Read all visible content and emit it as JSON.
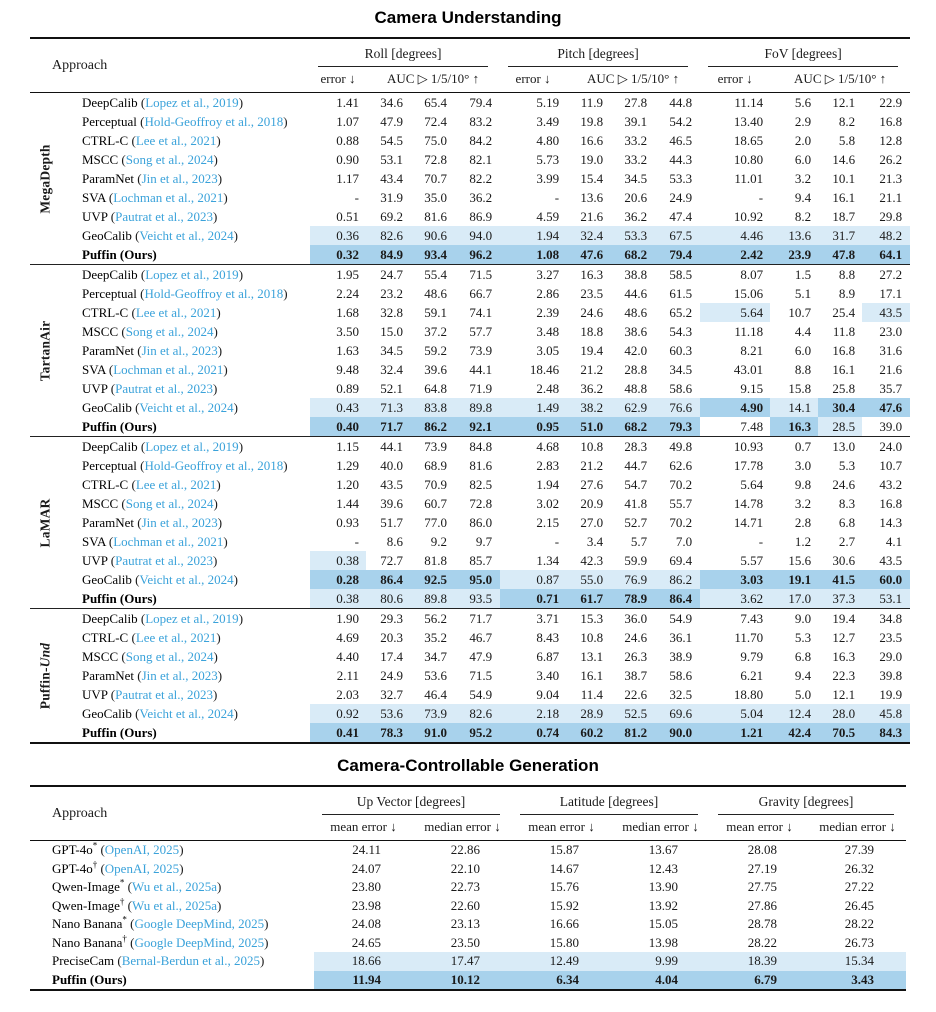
{
  "colors": {
    "citation": "#3AA2DA",
    "highlight_light": "#D9EBF7",
    "highlight_dark": "#A8D2EC"
  },
  "understanding": {
    "title": "Camera Understanding",
    "approach_label": "Approach",
    "groups": [
      {
        "label": "Roll [degrees]",
        "error": "error ↓",
        "auc": "AUC ▷ 1/5/10° ↑"
      },
      {
        "label": "Pitch [degrees]",
        "error": "error ↓",
        "auc": "AUC ▷ 1/5/10° ↑"
      },
      {
        "label": "FoV [degrees]",
        "error": "error ↓",
        "auc": "AUC ▷ 1/5/10° ↑"
      }
    ],
    "sections": [
      {
        "label": "MegaDepth",
        "label_italic": "",
        "rows": [
          {
            "method": "DeepCalib",
            "cite": "Lopez et al., 2019",
            "values": [
              "1.41",
              "34.6",
              "65.4",
              "79.4",
              "5.19",
              "11.9",
              "27.8",
              "44.8",
              "11.14",
              "5.6",
              "12.1",
              "22.9"
            ]
          },
          {
            "method": "Perceptual",
            "cite": "Hold-Geoffroy et al., 2018",
            "values": [
              "1.07",
              "47.9",
              "72.4",
              "83.2",
              "3.49",
              "19.8",
              "39.1",
              "54.2",
              "13.40",
              "2.9",
              "8.2",
              "16.8"
            ]
          },
          {
            "method": "CTRL-C",
            "cite": "Lee et al., 2021",
            "values": [
              "0.88",
              "54.5",
              "75.0",
              "84.2",
              "4.80",
              "16.6",
              "33.2",
              "46.5",
              "18.65",
              "2.0",
              "5.8",
              "12.8"
            ]
          },
          {
            "method": "MSCC",
            "cite": "Song et al., 2024",
            "values": [
              "0.90",
              "53.1",
              "72.8",
              "82.1",
              "5.73",
              "19.0",
              "33.2",
              "44.3",
              "10.80",
              "6.0",
              "14.6",
              "26.2"
            ]
          },
          {
            "method": "ParamNet",
            "cite": "Jin et al., 2023",
            "values": [
              "1.17",
              "43.4",
              "70.7",
              "82.2",
              "3.99",
              "15.4",
              "34.5",
              "53.3",
              "11.01",
              "3.2",
              "10.1",
              "21.3"
            ]
          },
          {
            "method": "SVA",
            "cite": "Lochman et al., 2021",
            "values": [
              "-",
              "31.9",
              "35.0",
              "36.2",
              "-",
              "13.6",
              "20.6",
              "24.9",
              "-",
              "9.4",
              "16.1",
              "21.1"
            ]
          },
          {
            "method": "UVP",
            "cite": "Pautrat et al., 2023",
            "values": [
              "0.51",
              "69.2",
              "81.6",
              "86.9",
              "4.59",
              "21.6",
              "36.2",
              "47.4",
              "10.92",
              "8.2",
              "18.7",
              "29.8"
            ]
          },
          {
            "method": "GeoCalib",
            "cite": "Veicht et al., 2024",
            "values": [
              "0.36",
              "82.6",
              "90.6",
              "94.0",
              "1.94",
              "32.4",
              "53.3",
              "67.5",
              "4.46",
              "13.6",
              "31.7",
              "48.2"
            ],
            "hl": [
              1,
              1,
              1,
              1,
              1,
              1,
              1,
              1,
              1,
              1,
              1,
              1
            ]
          },
          {
            "method": "Puffin (Ours)",
            "bold": true,
            "values": [
              "0.32",
              "84.9",
              "93.4",
              "96.2",
              "1.08",
              "47.6",
              "68.2",
              "79.4",
              "2.42",
              "23.9",
              "47.8",
              "64.1"
            ],
            "hl": [
              2,
              2,
              2,
              2,
              2,
              2,
              2,
              2,
              2,
              2,
              2,
              2
            ]
          }
        ]
      },
      {
        "label": "TartanAir",
        "label_italic": "",
        "rows": [
          {
            "method": "DeepCalib",
            "cite": "Lopez et al., 2019",
            "values": [
              "1.95",
              "24.7",
              "55.4",
              "71.5",
              "3.27",
              "16.3",
              "38.8",
              "58.5",
              "8.07",
              "1.5",
              "8.8",
              "27.2"
            ]
          },
          {
            "method": "Perceptual",
            "cite": "Hold-Geoffroy et al., 2018",
            "values": [
              "2.24",
              "23.2",
              "48.6",
              "66.7",
              "2.86",
              "23.5",
              "44.6",
              "61.5",
              "15.06",
              "5.1",
              "8.9",
              "17.1"
            ]
          },
          {
            "method": "CTRL-C",
            "cite": "Lee et al., 2021",
            "values": [
              "1.68",
              "32.8",
              "59.1",
              "74.1",
              "2.39",
              "24.6",
              "48.6",
              "65.2",
              "5.64",
              "10.7",
              "25.4",
              "43.5"
            ],
            "hl": [
              0,
              0,
              0,
              0,
              0,
              0,
              0,
              0,
              1,
              0,
              0,
              1
            ]
          },
          {
            "method": "MSCC",
            "cite": "Song et al., 2024",
            "values": [
              "3.50",
              "15.0",
              "37.2",
              "57.7",
              "3.48",
              "18.8",
              "38.6",
              "54.3",
              "11.18",
              "4.4",
              "11.8",
              "23.0"
            ]
          },
          {
            "method": "ParamNet",
            "cite": "Jin et al., 2023",
            "values": [
              "1.63",
              "34.5",
              "59.2",
              "73.9",
              "3.05",
              "19.4",
              "42.0",
              "60.3",
              "8.21",
              "6.0",
              "16.8",
              "31.6"
            ]
          },
          {
            "method": "SVA",
            "cite": "Lochman et al., 2021",
            "values": [
              "9.48",
              "32.4",
              "39.6",
              "44.1",
              "18.46",
              "21.2",
              "28.8",
              "34.5",
              "43.01",
              "8.8",
              "16.1",
              "21.6"
            ]
          },
          {
            "method": "UVP",
            "cite": "Pautrat et al., 2023",
            "values": [
              "0.89",
              "52.1",
              "64.8",
              "71.9",
              "2.48",
              "36.2",
              "48.8",
              "58.6",
              "9.15",
              "15.8",
              "25.8",
              "35.7"
            ]
          },
          {
            "method": "GeoCalib",
            "cite": "Veicht et al., 2024",
            "values": [
              "0.43",
              "71.3",
              "83.8",
              "89.8",
              "1.49",
              "38.2",
              "62.9",
              "76.6",
              "4.90",
              "14.1",
              "30.4",
              "47.6"
            ],
            "hl": [
              1,
              1,
              1,
              1,
              1,
              1,
              1,
              1,
              2,
              1,
              2,
              2
            ]
          },
          {
            "method": "Puffin (Ours)",
            "bold": true,
            "values": [
              "0.40",
              "71.7",
              "86.2",
              "92.1",
              "0.95",
              "51.0",
              "68.2",
              "79.3",
              "7.48",
              "16.3",
              "28.5",
              "39.0"
            ],
            "hl": [
              2,
              2,
              2,
              2,
              2,
              2,
              2,
              2,
              0,
              2,
              1,
              0
            ]
          }
        ]
      },
      {
        "label": "LaMAR",
        "label_italic": "",
        "rows": [
          {
            "method": "DeepCalib",
            "cite": "Lopez et al., 2019",
            "values": [
              "1.15",
              "44.1",
              "73.9",
              "84.8",
              "4.68",
              "10.8",
              "28.3",
              "49.8",
              "10.93",
              "0.7",
              "13.0",
              "24.0"
            ]
          },
          {
            "method": "Perceptual",
            "cite": "Hold-Geoffroy et al., 2018",
            "values": [
              "1.29",
              "40.0",
              "68.9",
              "81.6",
              "2.83",
              "21.2",
              "44.7",
              "62.6",
              "17.78",
              "3.0",
              "5.3",
              "10.7"
            ]
          },
          {
            "method": "CTRL-C",
            "cite": "Lee et al., 2021",
            "values": [
              "1.20",
              "43.5",
              "70.9",
              "82.5",
              "1.94",
              "27.6",
              "54.7",
              "70.2",
              "5.64",
              "9.8",
              "24.6",
              "43.2"
            ]
          },
          {
            "method": "MSCC",
            "cite": "Song et al., 2024",
            "values": [
              "1.44",
              "39.6",
              "60.7",
              "72.8",
              "3.02",
              "20.9",
              "41.8",
              "55.7",
              "14.78",
              "3.2",
              "8.3",
              "16.8"
            ]
          },
          {
            "method": "ParamNet",
            "cite": "Jin et al., 2023",
            "values": [
              "0.93",
              "51.7",
              "77.0",
              "86.0",
              "2.15",
              "27.0",
              "52.7",
              "70.2",
              "14.71",
              "2.8",
              "6.8",
              "14.3"
            ]
          },
          {
            "method": "SVA",
            "cite": "Lochman et al., 2021",
            "values": [
              "-",
              "8.6",
              "9.2",
              "9.7",
              "-",
              "3.4",
              "5.7",
              "7.0",
              "-",
              "1.2",
              "2.7",
              "4.1"
            ]
          },
          {
            "method": "UVP",
            "cite": "Pautrat et al., 2023",
            "values": [
              "0.38",
              "72.7",
              "81.8",
              "85.7",
              "1.34",
              "42.3",
              "59.9",
              "69.4",
              "5.57",
              "15.6",
              "30.6",
              "43.5"
            ],
            "hl": [
              1,
              0,
              0,
              0,
              0,
              0,
              0,
              0,
              0,
              0,
              0,
              0
            ]
          },
          {
            "method": "GeoCalib",
            "cite": "Veicht et al., 2024",
            "values": [
              "0.28",
              "86.4",
              "92.5",
              "95.0",
              "0.87",
              "55.0",
              "76.9",
              "86.2",
              "3.03",
              "19.1",
              "41.5",
              "60.0"
            ],
            "hl": [
              2,
              2,
              2,
              2,
              1,
              1,
              1,
              1,
              2,
              2,
              2,
              2
            ]
          },
          {
            "method": "Puffin (Ours)",
            "bold": true,
            "values": [
              "0.38",
              "80.6",
              "89.8",
              "93.5",
              "0.71",
              "61.7",
              "78.9",
              "86.4",
              "3.62",
              "17.0",
              "37.3",
              "53.1"
            ],
            "hl": [
              1,
              1,
              1,
              1,
              2,
              2,
              2,
              2,
              1,
              1,
              1,
              1
            ]
          }
        ]
      },
      {
        "label": "Puffin-",
        "label_italic": "Und",
        "rows": [
          {
            "method": "DeepCalib",
            "cite": "Lopez et al., 2019",
            "values": [
              "1.90",
              "29.3",
              "56.2",
              "71.7",
              "3.71",
              "15.3",
              "36.0",
              "54.9",
              "7.43",
              "9.0",
              "19.4",
              "34.8"
            ]
          },
          {
            "method": "CTRL-C",
            "cite": "Lee et al., 2021",
            "values": [
              "4.69",
              "20.3",
              "35.2",
              "46.7",
              "8.43",
              "10.8",
              "24.6",
              "36.1",
              "11.70",
              "5.3",
              "12.7",
              "23.5"
            ]
          },
          {
            "method": "MSCC",
            "cite": "Song et al., 2024",
            "values": [
              "4.40",
              "17.4",
              "34.7",
              "47.9",
              "6.87",
              "13.1",
              "26.3",
              "38.9",
              "9.79",
              "6.8",
              "16.3",
              "29.0"
            ]
          },
          {
            "method": "ParamNet",
            "cite": "Jin et al., 2023",
            "values": [
              "2.11",
              "24.9",
              "53.6",
              "71.5",
              "3.40",
              "16.1",
              "38.7",
              "58.6",
              "6.21",
              "9.4",
              "22.3",
              "39.8"
            ]
          },
          {
            "method": "UVP",
            "cite": "Pautrat et al., 2023",
            "values": [
              "2.03",
              "32.7",
              "46.4",
              "54.9",
              "9.04",
              "11.4",
              "22.6",
              "32.5",
              "18.80",
              "5.0",
              "12.1",
              "19.9"
            ]
          },
          {
            "method": "GeoCalib",
            "cite": "Veicht et al., 2024",
            "values": [
              "0.92",
              "53.6",
              "73.9",
              "82.6",
              "2.18",
              "28.9",
              "52.5",
              "69.6",
              "5.04",
              "12.4",
              "28.0",
              "45.8"
            ],
            "hl": [
              1,
              1,
              1,
              1,
              1,
              1,
              1,
              1,
              1,
              1,
              1,
              1
            ]
          },
          {
            "method": "Puffin (Ours)",
            "bold": true,
            "values": [
              "0.41",
              "78.3",
              "91.0",
              "95.2",
              "0.74",
              "60.2",
              "81.2",
              "90.0",
              "1.21",
              "42.4",
              "70.5",
              "84.3"
            ],
            "hl": [
              2,
              2,
              2,
              2,
              2,
              2,
              2,
              2,
              2,
              2,
              2,
              2
            ]
          }
        ]
      }
    ]
  },
  "generation": {
    "title": "Camera-Controllable Generation",
    "approach_label": "Approach",
    "groups": [
      {
        "label": "Up Vector [degrees]",
        "mean": "mean error ↓",
        "median": "median error ↓"
      },
      {
        "label": "Latitude [degrees]",
        "mean": "mean error ↓",
        "median": "median error ↓"
      },
      {
        "label": "Gravity [degrees]",
        "mean": "mean error ↓",
        "median": "median error ↓"
      }
    ],
    "rows": [
      {
        "method": "GPT-4o",
        "marker": "*",
        "cite": "OpenAI, 2025",
        "values": [
          "24.11",
          "22.86",
          "15.87",
          "13.67",
          "28.08",
          "27.39"
        ]
      },
      {
        "method": "GPT-4o",
        "marker": "†",
        "cite": "OpenAI, 2025",
        "values": [
          "24.07",
          "22.10",
          "14.67",
          "12.43",
          "27.19",
          "26.32"
        ]
      },
      {
        "method": "Qwen-Image",
        "marker": "*",
        "cite": "Wu et al., 2025a",
        "values": [
          "23.80",
          "22.73",
          "15.76",
          "13.90",
          "27.75",
          "27.22"
        ]
      },
      {
        "method": "Qwen-Image",
        "marker": "†",
        "cite": "Wu et al., 2025a",
        "values": [
          "23.98",
          "22.60",
          "15.92",
          "13.92",
          "27.86",
          "26.45"
        ]
      },
      {
        "method": "Nano Banana",
        "marker": "*",
        "cite": "Google DeepMind, 2025",
        "values": [
          "24.08",
          "23.13",
          "16.66",
          "15.05",
          "28.78",
          "28.22"
        ]
      },
      {
        "method": "Nano Banana",
        "marker": "†",
        "cite": "Google DeepMind, 2025",
        "values": [
          "24.65",
          "23.50",
          "15.80",
          "13.98",
          "28.22",
          "26.73"
        ]
      },
      {
        "method": "PreciseCam",
        "cite": "Bernal-Berdun et al., 2025",
        "values": [
          "18.66",
          "17.47",
          "12.49",
          "9.99",
          "18.39",
          "15.34"
        ],
        "hl": [
          1,
          1,
          1,
          1,
          1,
          1
        ]
      },
      {
        "method": "Puffin (Ours)",
        "bold": true,
        "values": [
          "11.94",
          "10.12",
          "6.34",
          "4.04",
          "6.79",
          "3.43"
        ],
        "hl": [
          2,
          2,
          2,
          2,
          2,
          2
        ]
      }
    ]
  }
}
